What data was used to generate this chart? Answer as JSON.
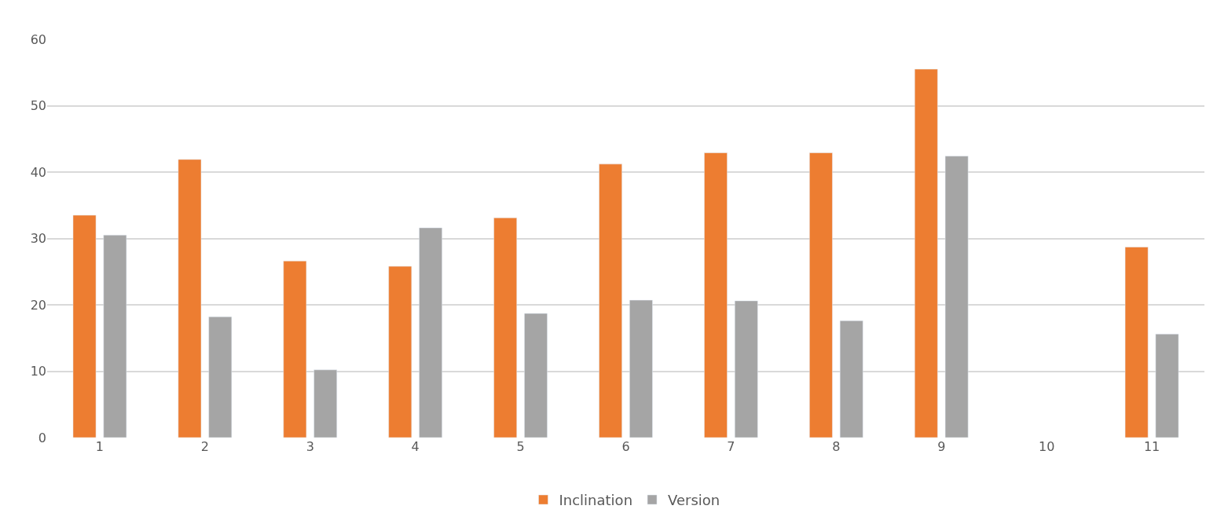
{
  "chart_data": {
    "type": "bar",
    "categories": [
      "1",
      "2",
      "3",
      "4",
      "5",
      "6",
      "7",
      "8",
      "9",
      "10",
      "11"
    ],
    "series": [
      {
        "name": "Inclination",
        "color": "#ed7d31",
        "values": [
          33.5,
          41.9,
          26.6,
          25.8,
          33.1,
          41.2,
          42.9,
          42.9,
          55.5,
          null,
          28.7
        ]
      },
      {
        "name": "Version",
        "color": "#a5a5a5",
        "values": [
          30.5,
          18.2,
          10.2,
          31.6,
          18.7,
          20.7,
          20.6,
          17.6,
          42.4,
          null,
          15.6
        ]
      }
    ],
    "ylim": [
      0,
      60
    ],
    "yticks": [
      0,
      10,
      20,
      30,
      40,
      50,
      60
    ],
    "grid": "y",
    "legend": "bottom"
  }
}
